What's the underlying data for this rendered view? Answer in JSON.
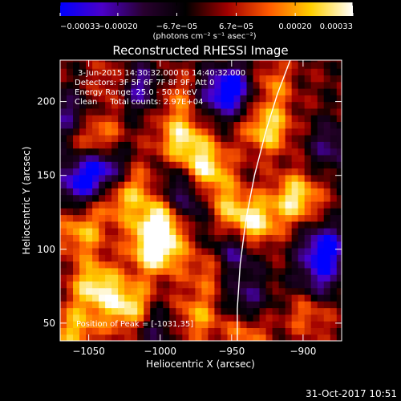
{
  "chart_data": {
    "type": "heatmap",
    "title": "Reconstructed RHESSI Image",
    "xlabel": "Heliocentric X (arcsec)",
    "ylabel": "Heliocentric Y (arcsec)",
    "xlim": [
      -1070,
      -873
    ],
    "ylim": [
      38,
      228
    ],
    "x_ticks": [
      -1050,
      -1000,
      -950,
      -900
    ],
    "x_tick_labels": [
      "−1050",
      "−1000",
      "−950",
      "−900"
    ],
    "y_ticks": [
      50,
      100,
      150,
      200
    ],
    "y_tick_labels": [
      "50",
      "100",
      "150",
      "200"
    ],
    "colorbar": {
      "range": [
        -0.00033,
        0.00033
      ],
      "ticks": [
        -0.00033,
        -0.0002,
        -6.7e-05,
        6.7e-05,
        0.0002,
        0.00033
      ],
      "tick_labels": [
        "−0.00033",
        "−0.00020",
        "−6.7e−05",
        "6.7e−05",
        "0.00020",
        "0.00033"
      ],
      "label": "(photons cm⁻² s⁻¹ asec⁻²)",
      "colors": [
        "#0000ff",
        "#4b00c8",
        "#28002e",
        "#000000",
        "#a00000",
        "#ff5a00",
        "#ffd000",
        "#ffffff"
      ]
    },
    "annotations": [
      "3-Jun-2015 14:30:32.000 to 14:40:32.000",
      "Detectors: 3F 5F 6F 7F 8F 9F, Att 0",
      "Energy Range: 25.0 - 50.0 keV",
      "Clean     Total counts: 2.97E+04"
    ],
    "peak_label": "Position of Peak = [-1031,35]",
    "limb_line": [
      [
        -946,
        38
      ],
      [
        -946,
        60
      ],
      [
        -944,
        90
      ],
      [
        -940,
        120
      ],
      [
        -934,
        150
      ],
      [
        -926,
        180
      ],
      [
        -918,
        205
      ],
      [
        -909,
        228
      ]
    ],
    "blobs": [
      {
        "x": -1045,
        "y": 75,
        "v": 0.82
      },
      {
        "x": -1020,
        "y": 60,
        "v": 0.9
      },
      {
        "x": -1003,
        "y": 100,
        "v": 0.95
      },
      {
        "x": -1000,
        "y": 118,
        "v": 0.85
      },
      {
        "x": -1030,
        "y": 135,
        "v": 0.55
      },
      {
        "x": -1045,
        "y": 175,
        "v": 0.7
      },
      {
        "x": -985,
        "y": 175,
        "v": 0.75
      },
      {
        "x": -968,
        "y": 155,
        "v": 0.8
      },
      {
        "x": -958,
        "y": 130,
        "v": 0.6
      },
      {
        "x": -935,
        "y": 118,
        "v": 0.85
      },
      {
        "x": -905,
        "y": 135,
        "v": 0.8
      },
      {
        "x": -925,
        "y": 182,
        "v": 0.75
      },
      {
        "x": -925,
        "y": 212,
        "v": 0.55
      },
      {
        "x": -965,
        "y": 88,
        "v": 0.5
      },
      {
        "x": -895,
        "y": 60,
        "v": 0.55
      },
      {
        "x": -940,
        "y": 45,
        "v": 0.5
      },
      {
        "x": -1055,
        "y": 112,
        "v": 0.6
      },
      {
        "x": -1010,
        "y": 145,
        "v": 0.45
      },
      {
        "x": -975,
        "y": 55,
        "v": 0.55
      },
      {
        "x": -1030,
        "y": 212,
        "v": 0.5
      },
      {
        "x": -1060,
        "y": 45,
        "v": 0.6
      },
      {
        "x": -990,
        "y": 205,
        "v": 0.45
      },
      {
        "x": -1058,
        "y": 145,
        "v": -0.7
      },
      {
        "x": -1040,
        "y": 155,
        "v": -0.9
      },
      {
        "x": -1015,
        "y": 210,
        "v": -0.85
      },
      {
        "x": -975,
        "y": 130,
        "v": -0.6
      },
      {
        "x": -950,
        "y": 98,
        "v": -0.7
      },
      {
        "x": -885,
        "y": 100,
        "v": -0.95
      },
      {
        "x": -890,
        "y": 75,
        "v": -0.6
      },
      {
        "x": -945,
        "y": 210,
        "v": -0.75
      },
      {
        "x": -960,
        "y": 205,
        "v": -0.6
      },
      {
        "x": -1005,
        "y": 50,
        "v": -0.55
      },
      {
        "x": -880,
        "y": 170,
        "v": -0.5
      },
      {
        "x": -940,
        "y": 65,
        "v": -0.55
      },
      {
        "x": -1063,
        "y": 190,
        "v": -0.55
      },
      {
        "x": -993,
        "y": 145,
        "v": -0.5
      }
    ]
  },
  "footer": {
    "timestamp": "31-Oct-2017 10:51"
  }
}
